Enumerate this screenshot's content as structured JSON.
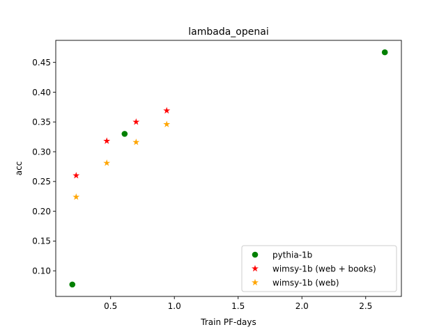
{
  "chart_data": {
    "type": "scatter",
    "title": "lambada_openai",
    "xlabel": "Train PF-days",
    "ylabel": "acc",
    "xlim": [
      0.07,
      2.78
    ],
    "ylim": [
      0.057,
      0.487
    ],
    "x_ticks": [
      0.5,
      1.0,
      1.5,
      2.0,
      2.5
    ],
    "x_tick_labels": [
      "0.5",
      "1.0",
      "1.5",
      "2.0",
      "2.5"
    ],
    "y_ticks": [
      0.1,
      0.15,
      0.2,
      0.25,
      0.3,
      0.35,
      0.4,
      0.45
    ],
    "y_tick_labels": [
      "0.10",
      "0.15",
      "0.20",
      "0.25",
      "0.30",
      "0.35",
      "0.40",
      "0.45"
    ],
    "grid": false,
    "legend_position": "bottom-right",
    "series": [
      {
        "name": "pythia-1b",
        "marker": "circle",
        "color": "#008000",
        "points": [
          [
            0.2,
            0.077
          ],
          [
            0.61,
            0.33
          ],
          [
            2.65,
            0.467
          ]
        ]
      },
      {
        "name": "wimsy-1b (web + books)",
        "marker": "star",
        "color": "#ff0000",
        "points": [
          [
            0.23,
            0.26
          ],
          [
            0.47,
            0.318
          ],
          [
            0.7,
            0.35
          ],
          [
            0.94,
            0.369
          ]
        ]
      },
      {
        "name": "wimsy-1b (web)",
        "marker": "star",
        "color": "#ffa500",
        "points": [
          [
            0.23,
            0.224
          ],
          [
            0.47,
            0.281
          ],
          [
            0.7,
            0.316
          ],
          [
            0.94,
            0.346
          ]
        ]
      }
    ]
  }
}
